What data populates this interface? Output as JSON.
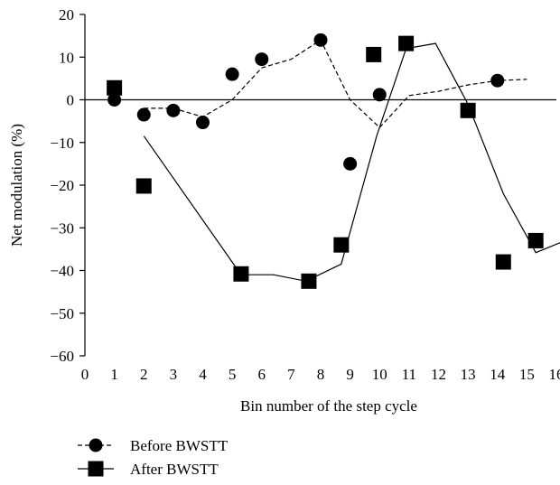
{
  "chart_data": {
    "type": "scatter",
    "title": "",
    "xlabel": "Bin number of the step cycle",
    "ylabel": "Net modulation (%)",
    "xlim": [
      0,
      16
    ],
    "ylim": [
      -60,
      20
    ],
    "x_ticks": [
      0,
      1,
      2,
      3,
      4,
      5,
      6,
      7,
      8,
      9,
      10,
      11,
      12,
      13,
      14,
      15,
      16
    ],
    "y_ticks": [
      20,
      10,
      0,
      -10,
      -20,
      -30,
      -40,
      -50,
      -60
    ],
    "grid": false,
    "legend_position": "bottom-left",
    "series": [
      {
        "name": "Before BWSTT",
        "marker": "circle",
        "line_style": "dashed",
        "color": "#000000",
        "points": [
          {
            "x": 1,
            "y": 0
          },
          {
            "x": 2,
            "y": -3.5
          },
          {
            "x": 3,
            "y": -2.5
          },
          {
            "x": 4,
            "y": -5.3
          },
          {
            "x": 5,
            "y": 6
          },
          {
            "x": 6,
            "y": 9.5
          },
          {
            "x": 8,
            "y": 14
          },
          {
            "x": 9,
            "y": -15
          },
          {
            "x": 10,
            "y": 1.2
          },
          {
            "x": 14,
            "y": 4.5
          }
        ],
        "line": [
          {
            "x": 2,
            "y": -2
          },
          {
            "x": 3,
            "y": -2
          },
          {
            "x": 4,
            "y": -4
          },
          {
            "x": 5,
            "y": 0
          },
          {
            "x": 6,
            "y": 7.5
          },
          {
            "x": 7,
            "y": 9.5
          },
          {
            "x": 8,
            "y": 14
          },
          {
            "x": 9,
            "y": 0
          },
          {
            "x": 10,
            "y": -6.5
          },
          {
            "x": 11,
            "y": 1
          },
          {
            "x": 12,
            "y": 2
          },
          {
            "x": 13,
            "y": 3.5
          },
          {
            "x": 14,
            "y": 4.5
          },
          {
            "x": 15,
            "y": 4.8
          }
        ]
      },
      {
        "name": "After BWSTT",
        "marker": "square",
        "line_style": "solid",
        "color": "#000000",
        "points": [
          {
            "x": 1,
            "y": 2.8
          },
          {
            "x": 2,
            "y": -20.2
          },
          {
            "x": 5.3,
            "y": -40.8
          },
          {
            "x": 7.6,
            "y": -42.5
          },
          {
            "x": 8.7,
            "y": -34
          },
          {
            "x": 9.8,
            "y": 10.6
          },
          {
            "x": 10.9,
            "y": 13.2
          },
          {
            "x": 13,
            "y": -2.5
          },
          {
            "x": 14.2,
            "y": -38
          },
          {
            "x": 15.3,
            "y": -33
          }
        ],
        "line": [
          {
            "x": 2,
            "y": -8.5
          },
          {
            "x": 5.3,
            "y": -41
          },
          {
            "x": 6.4,
            "y": -41
          },
          {
            "x": 7.5,
            "y": -42.5
          },
          {
            "x": 8.7,
            "y": -38.5
          },
          {
            "x": 9.9,
            "y": -8.5
          },
          {
            "x": 10.9,
            "y": 12
          },
          {
            "x": 11.9,
            "y": 13.2
          },
          {
            "x": 13,
            "y": -1
          },
          {
            "x": 14.2,
            "y": -22
          },
          {
            "x": 15.3,
            "y": -35.8
          },
          {
            "x": 16.3,
            "y": -33
          }
        ]
      }
    ]
  }
}
